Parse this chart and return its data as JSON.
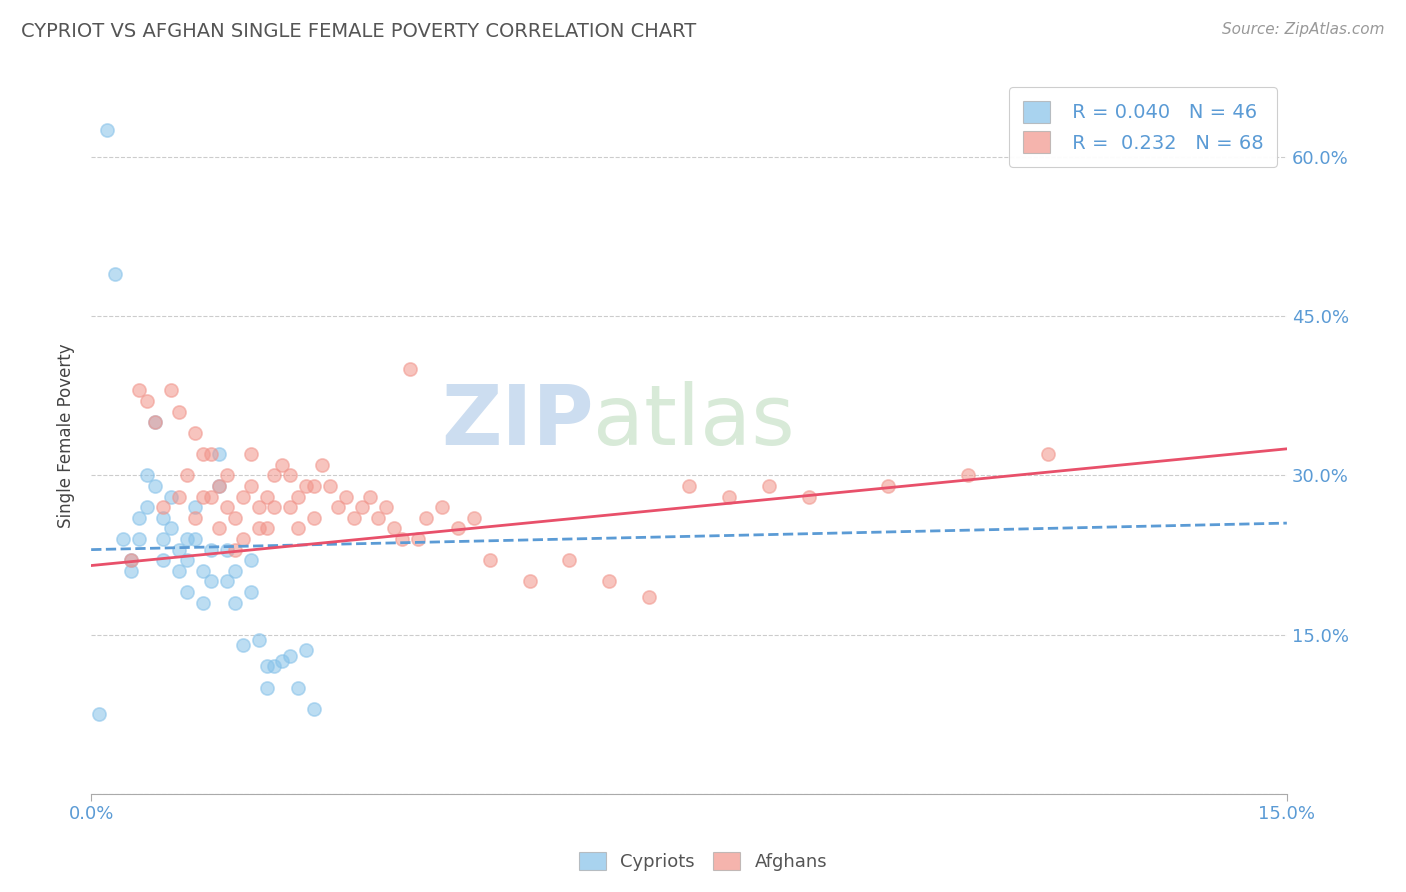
{
  "title": "CYPRIOT VS AFGHAN SINGLE FEMALE POVERTY CORRELATION CHART",
  "source": "Source: ZipAtlas.com",
  "ylabel": "Single Female Poverty",
  "xlim": [
    0,
    0.15
  ],
  "ylim": [
    0,
    0.675
  ],
  "yticks": [
    0.0,
    0.15,
    0.3,
    0.45,
    0.6
  ],
  "ytick_right_labels": [
    "",
    "15.0%",
    "30.0%",
    "45.0%",
    "60.0%"
  ],
  "xtick_labels": [
    "0.0%",
    "15.0%"
  ],
  "xtick_vals": [
    0.0,
    0.15
  ],
  "legend_R1": "R = 0.040",
  "legend_N1": "N = 46",
  "legend_R2": "R =  0.232",
  "legend_N2": "N = 68",
  "cypriot_color": "#85C1E9",
  "afghan_color": "#F1948A",
  "background_color": "#ffffff",
  "grid_color": "#cccccc",
  "title_color": "#555555",
  "axis_color": "#5b9bd5",
  "watermark_zip": "ZIP",
  "watermark_atlas": "atlas",
  "watermark_color_zip": "#ccddf0",
  "watermark_color_atlas": "#d8ead8",
  "cypriot_x": [
    0.001,
    0.002,
    0.003,
    0.004,
    0.005,
    0.005,
    0.006,
    0.006,
    0.007,
    0.007,
    0.008,
    0.008,
    0.009,
    0.009,
    0.009,
    0.01,
    0.01,
    0.011,
    0.011,
    0.012,
    0.012,
    0.012,
    0.013,
    0.013,
    0.014,
    0.014,
    0.015,
    0.015,
    0.016,
    0.016,
    0.017,
    0.017,
    0.018,
    0.018,
    0.019,
    0.02,
    0.02,
    0.021,
    0.022,
    0.022,
    0.023,
    0.024,
    0.025,
    0.026,
    0.027,
    0.028
  ],
  "cypriot_y": [
    0.075,
    0.625,
    0.49,
    0.24,
    0.22,
    0.21,
    0.26,
    0.24,
    0.3,
    0.27,
    0.35,
    0.29,
    0.26,
    0.24,
    0.22,
    0.28,
    0.25,
    0.23,
    0.21,
    0.24,
    0.22,
    0.19,
    0.27,
    0.24,
    0.21,
    0.18,
    0.23,
    0.2,
    0.32,
    0.29,
    0.23,
    0.2,
    0.21,
    0.18,
    0.14,
    0.22,
    0.19,
    0.145,
    0.12,
    0.1,
    0.12,
    0.125,
    0.13,
    0.1,
    0.135,
    0.08
  ],
  "afghan_x": [
    0.005,
    0.006,
    0.007,
    0.008,
    0.009,
    0.01,
    0.011,
    0.011,
    0.012,
    0.013,
    0.013,
    0.014,
    0.014,
    0.015,
    0.015,
    0.016,
    0.016,
    0.017,
    0.017,
    0.018,
    0.018,
    0.019,
    0.019,
    0.02,
    0.02,
    0.021,
    0.021,
    0.022,
    0.022,
    0.023,
    0.023,
    0.024,
    0.025,
    0.025,
    0.026,
    0.026,
    0.027,
    0.028,
    0.028,
    0.029,
    0.03,
    0.031,
    0.032,
    0.033,
    0.034,
    0.035,
    0.036,
    0.037,
    0.038,
    0.039,
    0.04,
    0.041,
    0.042,
    0.044,
    0.046,
    0.048,
    0.05,
    0.055,
    0.06,
    0.065,
    0.07,
    0.075,
    0.08,
    0.085,
    0.09,
    0.1,
    0.11,
    0.12
  ],
  "afghan_y": [
    0.22,
    0.38,
    0.37,
    0.35,
    0.27,
    0.38,
    0.36,
    0.28,
    0.3,
    0.34,
    0.26,
    0.32,
    0.28,
    0.32,
    0.28,
    0.29,
    0.25,
    0.3,
    0.27,
    0.26,
    0.23,
    0.28,
    0.24,
    0.32,
    0.29,
    0.27,
    0.25,
    0.28,
    0.25,
    0.3,
    0.27,
    0.31,
    0.3,
    0.27,
    0.28,
    0.25,
    0.29,
    0.29,
    0.26,
    0.31,
    0.29,
    0.27,
    0.28,
    0.26,
    0.27,
    0.28,
    0.26,
    0.27,
    0.25,
    0.24,
    0.4,
    0.24,
    0.26,
    0.27,
    0.25,
    0.26,
    0.22,
    0.2,
    0.22,
    0.2,
    0.185,
    0.29,
    0.28,
    0.29,
    0.28,
    0.29,
    0.3,
    0.32
  ],
  "cypriot_trend": [
    0.23,
    0.255
  ],
  "afghan_trend": [
    0.215,
    0.325
  ]
}
